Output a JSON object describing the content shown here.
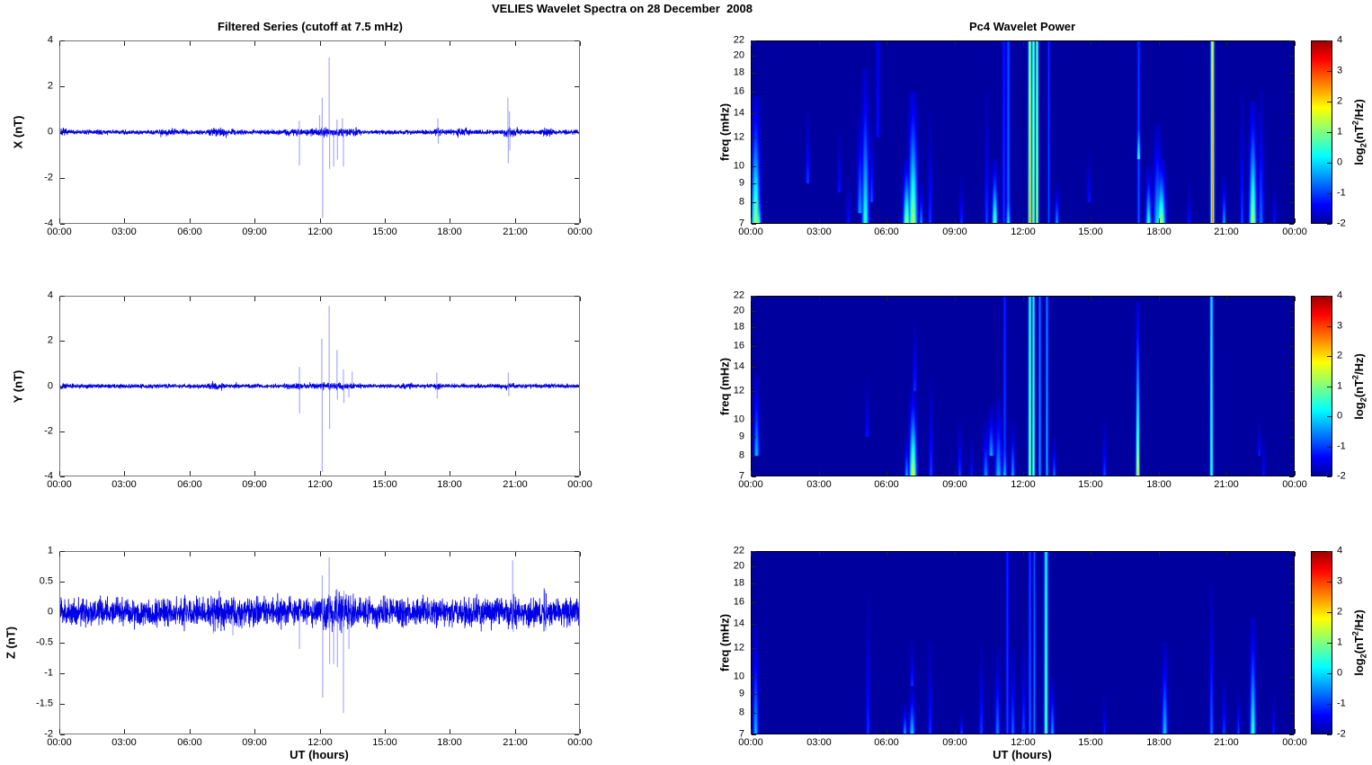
{
  "suptitle": "VELIES Wavelet Spectra on 28 December  2008",
  "palette": {
    "series_line": "#0000e6",
    "spike_line": "#7b7bff",
    "timeseries_frame": "#777777",
    "spectrogram_frame": "#000000",
    "spectrogram_background": "#00009c",
    "text": "#000000",
    "background": "#ffffff"
  },
  "time_axis": {
    "label": "UT (hours)",
    "ticks": [
      "00:00",
      "03:00",
      "06:00",
      "09:00",
      "12:00",
      "15:00",
      "18:00",
      "21:00",
      "00:00"
    ],
    "range_hours": [
      0,
      24
    ]
  },
  "colorbar": {
    "label": {
      "pre": "log",
      "sub": "2",
      "mid": "(nT",
      "sup": "2",
      "post": "/Hz)"
    },
    "ticks": [
      4,
      3,
      2,
      1,
      0,
      -1,
      -2
    ],
    "lim": [
      -2,
      4
    ],
    "colormap": "jet"
  },
  "chart_data": [
    {
      "id": "ts-x",
      "type": "line",
      "column": "left",
      "row": 0,
      "title": "Filtered Series (cutoff at 7.5 mHz)",
      "ylabel": "X (nT)",
      "ylim": [
        -4,
        4
      ],
      "yticks": [
        -4,
        -2,
        0,
        2,
        4
      ],
      "seed": 7,
      "noise_base": 0.1,
      "noise_bursts": [
        [
          0,
          0.35,
          1.6
        ],
        [
          4.6,
          5.4,
          1.6
        ],
        [
          6.8,
          7.7,
          1.8
        ],
        [
          7.9,
          8.15,
          1.5
        ],
        [
          10.3,
          11.2,
          1.5
        ],
        [
          11.3,
          13.9,
          1.7
        ],
        [
          17.3,
          17.7,
          1.6
        ],
        [
          18.3,
          18.9,
          1.8
        ],
        [
          20.5,
          21.15,
          2.1
        ],
        [
          22.15,
          22.7,
          1.9
        ]
      ],
      "spikes": [
        [
          11.06,
          0.5
        ],
        [
          11.07,
          -1.45
        ],
        [
          12.0,
          0.75
        ],
        [
          12.12,
          1.5
        ],
        [
          12.14,
          -3.75
        ],
        [
          12.44,
          3.25
        ],
        [
          12.46,
          -1.6
        ],
        [
          12.65,
          -1.5
        ],
        [
          12.8,
          0.55
        ],
        [
          12.82,
          -1.2
        ],
        [
          13.05,
          0.6
        ],
        [
          13.1,
          -1.5
        ],
        [
          17.45,
          0.6
        ],
        [
          17.47,
          -0.5
        ],
        [
          20.68,
          1.5
        ],
        [
          20.7,
          -1.35
        ],
        [
          20.75,
          0.9
        ],
        [
          20.77,
          -0.8
        ]
      ]
    },
    {
      "id": "ts-y",
      "type": "line",
      "column": "left",
      "row": 1,
      "title": "",
      "ylabel": "Y (nT)",
      "ylim": [
        -4,
        4
      ],
      "yticks": [
        -4,
        -2,
        0,
        2,
        4
      ],
      "seed": 13,
      "noise_base": 0.09,
      "noise_bursts": [
        [
          0,
          0.3,
          1.4
        ],
        [
          6.9,
          7.6,
          1.9
        ],
        [
          8.05,
          8.25,
          1.5
        ],
        [
          10.3,
          11.9,
          1.6
        ],
        [
          12.0,
          13.6,
          1.6
        ],
        [
          15.8,
          16.3,
          1.4
        ],
        [
          17.3,
          17.6,
          1.6
        ],
        [
          20.6,
          21.0,
          1.5
        ]
      ],
      "spikes": [
        [
          11.07,
          0.85
        ],
        [
          11.08,
          -1.2
        ],
        [
          12.1,
          2.1
        ],
        [
          12.12,
          -3.8
        ],
        [
          12.44,
          3.55
        ],
        [
          12.46,
          -1.9
        ],
        [
          12.8,
          1.6
        ],
        [
          12.82,
          -0.6
        ],
        [
          13.1,
          0.75
        ],
        [
          13.12,
          -0.75
        ],
        [
          13.35,
          -0.5
        ],
        [
          13.5,
          0.65
        ],
        [
          17.4,
          0.6
        ],
        [
          17.42,
          -0.55
        ],
        [
          20.7,
          0.6
        ],
        [
          20.72,
          -0.45
        ]
      ]
    },
    {
      "id": "ts-z",
      "type": "line",
      "column": "left",
      "row": 2,
      "title": "",
      "ylabel": "Z (nT)",
      "ylim": [
        -2,
        1
      ],
      "yticks": [
        -2,
        -1.5,
        -1,
        -0.5,
        0,
        0.5,
        1
      ],
      "seed": 23,
      "noise_base": 0.22,
      "noise_bursts": [
        [
          7.0,
          7.5,
          1.3
        ],
        [
          12.0,
          13.6,
          1.35
        ],
        [
          18.5,
          18.85,
          1.25
        ],
        [
          20.8,
          21.15,
          1.3
        ],
        [
          22.3,
          22.65,
          1.3
        ]
      ],
      "spikes": [
        [
          7.1,
          -0.35
        ],
        [
          8.0,
          -0.38
        ],
        [
          11.07,
          -0.6
        ],
        [
          12.12,
          0.6
        ],
        [
          12.14,
          -1.4
        ],
        [
          12.44,
          0.9
        ],
        [
          12.46,
          -0.85
        ],
        [
          12.65,
          -0.85
        ],
        [
          12.8,
          0.38
        ],
        [
          12.82,
          -0.9
        ],
        [
          13.1,
          -1.65
        ],
        [
          13.12,
          0.35
        ],
        [
          13.35,
          -0.6
        ],
        [
          20.9,
          0.85
        ],
        [
          20.92,
          -0.32
        ],
        [
          22.4,
          0.35
        ],
        [
          22.42,
          -0.3
        ]
      ]
    },
    {
      "id": "sp-x",
      "type": "heatmap",
      "column": "right",
      "row": 0,
      "title": "Pc4 Wavelet Power",
      "ylabel": "freq (mHz)",
      "yscale": "log",
      "ylim": [
        7,
        22
      ],
      "yticks": [
        7,
        8,
        9,
        10,
        12,
        14,
        16,
        18,
        20,
        22
      ],
      "clim": [
        -2,
        4
      ],
      "background_power": -2,
      "colormap": "jet",
      "events": [
        [
          0.2,
          7,
          15.5,
          1.4,
          3
        ],
        [
          0.3,
          7,
          9,
          0.9,
          2
        ],
        [
          2.5,
          9,
          14,
          -0.9,
          1.5
        ],
        [
          3.9,
          8.5,
          12.5,
          -1.2,
          1.5
        ],
        [
          4.3,
          7,
          9.5,
          -1.2,
          1.5
        ],
        [
          4.8,
          7.5,
          14,
          -0.3,
          2
        ],
        [
          5.05,
          7,
          18.5,
          0.6,
          2.5
        ],
        [
          5.3,
          8,
          13,
          -0.8,
          1.5
        ],
        [
          5.6,
          12,
          22,
          -1.3,
          1.5,
          "uniform"
        ],
        [
          6.85,
          7,
          10.5,
          1.4,
          2.5
        ],
        [
          7.15,
          7,
          16,
          1.5,
          3
        ],
        [
          7.5,
          7,
          9,
          -0.3,
          1.5
        ],
        [
          7.9,
          7,
          14,
          -1.0,
          1.5
        ],
        [
          9.3,
          7,
          9.5,
          -1.0,
          1.5
        ],
        [
          10.4,
          7,
          16,
          -0.9,
          1.5
        ],
        [
          10.75,
          7,
          10.5,
          1.0,
          2
        ],
        [
          11.15,
          7,
          22,
          -1.0,
          1.2,
          "uniform"
        ],
        [
          11.35,
          7,
          22,
          -0.6,
          1.3,
          "uniform"
        ],
        [
          11.35,
          7,
          10,
          0.3,
          1.5
        ],
        [
          12.3,
          7,
          22,
          2.4,
          1.2,
          "uniform"
        ],
        [
          12.45,
          7,
          22,
          2.2,
          1,
          "uniform"
        ],
        [
          12.6,
          7,
          22,
          2.0,
          1,
          "uniform"
        ],
        [
          13.15,
          7,
          22,
          -0.8,
          1,
          "uniform"
        ],
        [
          13.5,
          7,
          9,
          -0.3,
          1.5
        ],
        [
          14.9,
          8,
          11,
          -1.2,
          1.5
        ],
        [
          17.1,
          7,
          22,
          -0.8,
          1.2,
          "uniform"
        ],
        [
          17.1,
          10.5,
          14.5,
          0.9,
          1.2
        ],
        [
          17.55,
          7,
          10,
          0.6,
          2
        ],
        [
          17.95,
          7,
          13,
          0.1,
          3
        ],
        [
          18.1,
          7,
          10.5,
          1.5,
          3
        ],
        [
          19.3,
          7,
          9,
          -1.2,
          1.5
        ],
        [
          20.35,
          7,
          22,
          2.8,
          1.3,
          "uniform"
        ],
        [
          20.85,
          7,
          9.5,
          -0.2,
          1.5
        ],
        [
          21.65,
          7,
          16,
          -0.9,
          1.5
        ],
        [
          22.15,
          7,
          15,
          1.5,
          2.5
        ],
        [
          22.5,
          7,
          16,
          -0.6,
          2
        ],
        [
          23.1,
          7,
          9,
          -1.2,
          1.5
        ]
      ]
    },
    {
      "id": "sp-y",
      "type": "heatmap",
      "column": "right",
      "row": 1,
      "title": "",
      "ylabel": "freq (mHz)",
      "yscale": "log",
      "ylim": [
        7,
        22
      ],
      "yticks": [
        7,
        8,
        9,
        10,
        12,
        14,
        16,
        18,
        20,
        22
      ],
      "clim": [
        -2,
        4
      ],
      "background_power": -2,
      "colormap": "jet",
      "events": [
        [
          0.25,
          8,
          13.5,
          -0.1,
          2
        ],
        [
          5.1,
          9,
          13,
          -1.2,
          1.5
        ],
        [
          6.85,
          7,
          9,
          -0.2,
          1.5
        ],
        [
          7.15,
          7,
          12,
          1.8,
          2.5
        ],
        [
          7.2,
          12,
          19,
          -1.0,
          1.5
        ],
        [
          7.95,
          7,
          13,
          -0.9,
          1.5
        ],
        [
          9.2,
          7,
          10,
          -0.9,
          1.5
        ],
        [
          9.7,
          7,
          9,
          -1.1,
          1.2
        ],
        [
          10.35,
          7,
          10,
          -0.4,
          2
        ],
        [
          10.6,
          8,
          11,
          -0.2,
          2
        ],
        [
          10.9,
          7,
          11.5,
          -0.1,
          2.5
        ],
        [
          11.2,
          7,
          22,
          -0.9,
          1.2,
          "uniform"
        ],
        [
          11.2,
          7,
          10,
          0.0,
          1.5
        ],
        [
          11.55,
          7,
          10,
          -0.2,
          1.5
        ],
        [
          12.3,
          7,
          22,
          1.6,
          1.1,
          "uniform"
        ],
        [
          12.45,
          7,
          22,
          1.4,
          1,
          "uniform"
        ],
        [
          12.75,
          7,
          22,
          -0.2,
          1,
          "uniform"
        ],
        [
          13.05,
          7,
          22,
          -0.1,
          1,
          "uniform"
        ],
        [
          13.35,
          7,
          9,
          -0.5,
          1.2
        ],
        [
          15.6,
          7,
          10,
          -0.9,
          1.5
        ],
        [
          17.05,
          7,
          21,
          2.2,
          1.3
        ],
        [
          20.3,
          7,
          22,
          0.9,
          1.2,
          "uniform"
        ],
        [
          22.4,
          8,
          10,
          -1.1,
          1.2
        ],
        [
          22.6,
          7,
          9,
          -1.2,
          1.2
        ]
      ]
    },
    {
      "id": "sp-z",
      "type": "heatmap",
      "column": "right",
      "row": 2,
      "title": "",
      "ylabel": "freq (mHz)",
      "yscale": "log",
      "ylim": [
        7,
        22
      ],
      "yticks": [
        7,
        8,
        9,
        10,
        12,
        14,
        16,
        18,
        20,
        22
      ],
      "clim": [
        -2,
        4
      ],
      "background_power": -2,
      "colormap": "jet",
      "events": [
        [
          0.2,
          7,
          14,
          -0.1,
          2
        ],
        [
          5.15,
          7,
          16.5,
          -1.0,
          1.5
        ],
        [
          6.8,
          7,
          8.5,
          -0.2,
          1.5
        ],
        [
          7.1,
          7,
          9.5,
          0.1,
          2
        ],
        [
          7.1,
          9.5,
          12.5,
          -1.0,
          1.5
        ],
        [
          7.9,
          7,
          12.5,
          -1.0,
          1.5
        ],
        [
          9.3,
          7,
          8,
          -0.8,
          1.2
        ],
        [
          10.15,
          7,
          12,
          -0.9,
          1.5
        ],
        [
          10.85,
          7,
          12,
          -0.5,
          1.8
        ],
        [
          11.3,
          7,
          22,
          -0.9,
          1.2,
          "uniform"
        ],
        [
          11.55,
          7,
          12,
          -0.6,
          1.5
        ],
        [
          12.0,
          7,
          12.5,
          -0.8,
          1.5
        ],
        [
          12.3,
          7,
          22,
          -0.6,
          1,
          "uniform"
        ],
        [
          12.5,
          7,
          22,
          -0.5,
          1,
          "uniform"
        ],
        [
          13.0,
          7,
          22,
          1.0,
          1.4,
          "uniform"
        ],
        [
          13.3,
          7,
          10,
          -0.2,
          1.5
        ],
        [
          15.6,
          7,
          9,
          -1.1,
          1.2
        ],
        [
          18.25,
          7,
          12.5,
          0.0,
          2
        ],
        [
          20.3,
          7,
          18,
          -0.6,
          1.5
        ],
        [
          20.85,
          7,
          10,
          -0.9,
          1.5
        ],
        [
          21.5,
          7,
          9,
          -0.8,
          1.2
        ],
        [
          22.15,
          7,
          14.5,
          0.7,
          2
        ],
        [
          23.05,
          7,
          9,
          -1.1,
          1.2
        ]
      ]
    }
  ]
}
